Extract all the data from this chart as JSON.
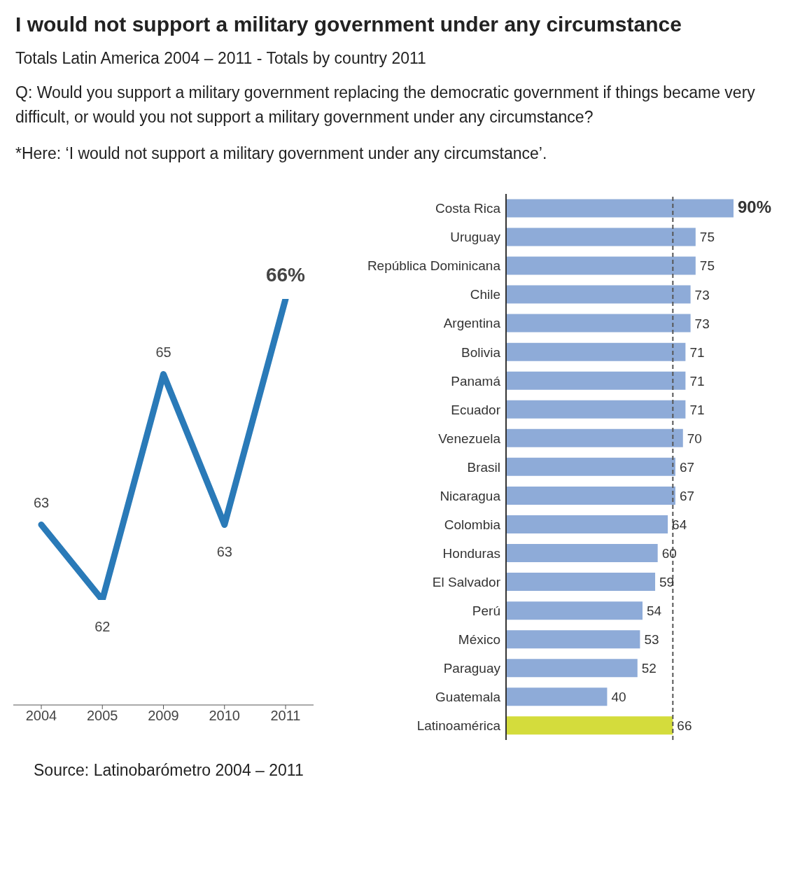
{
  "chart_data": [
    {
      "type": "line",
      "title": "I would not support a military government under any circumstance",
      "subtitle": "Totals Latin America 2004 – 2011 - Totals by country 2011",
      "annotations": [
        "Q: Would you support a military government replacing the democratic government if things became very difficult, or would you not support a military government under any circumstance?",
        "*Here: ‘I would not support a military government under any circumstance’."
      ],
      "categories": [
        "2004",
        "2005",
        "2009",
        "2010",
        "2011"
      ],
      "series": [
        {
          "color": "#2a7ab8",
          "values": [
            63,
            62,
            65,
            63,
            66
          ],
          "value_labels": [
            "63",
            "62",
            "65",
            "63",
            "66%"
          ]
        }
      ],
      "tick_labels": "x",
      "marker": "none",
      "line_style": "solid"
    },
    {
      "type": "bar",
      "orientation": "horizontal",
      "annotations": [
        "Source: Latinobarómetro 2004 – 2011"
      ],
      "categories": [
        "Costa Rica",
        "Uruguay",
        "República Dominicana",
        "Chile",
        "Argentina",
        "Bolivia",
        "Panamá",
        "Ecuador",
        "Venezuela",
        "Brasil",
        "Nicaragua",
        "Colombia",
        "Honduras",
        "El Salvador",
        "Perú",
        "México",
        "Paraguay",
        "Guatemala",
        "Latinoamérica"
      ],
      "values": [
        90,
        75,
        75,
        73,
        73,
        71,
        71,
        71,
        70,
        67,
        67,
        64,
        60,
        59,
        54,
        53,
        52,
        40,
        66
      ],
      "value_labels": [
        "90%",
        "75",
        "75",
        "73",
        "73",
        "71",
        "71",
        "71",
        "70",
        "67",
        "67",
        "64",
        "60",
        "59",
        "54",
        "53",
        "52",
        "40",
        "66"
      ],
      "colors": [
        "#8eabd8",
        "#8eabd8",
        "#8eabd8",
        "#8eabd8",
        "#8eabd8",
        "#8eabd8",
        "#8eabd8",
        "#8eabd8",
        "#8eabd8",
        "#8eabd8",
        "#8eabd8",
        "#8eabd8",
        "#8eabd8",
        "#8eabd8",
        "#8eabd8",
        "#8eabd8",
        "#8eabd8",
        "#8eabd8",
        "#d4dc3c"
      ],
      "tick_labels": "y",
      "ref_lines": [
        {
          "axis": "x",
          "value": 66,
          "line_style": "dashed",
          "color": "#555555"
        }
      ]
    }
  ]
}
